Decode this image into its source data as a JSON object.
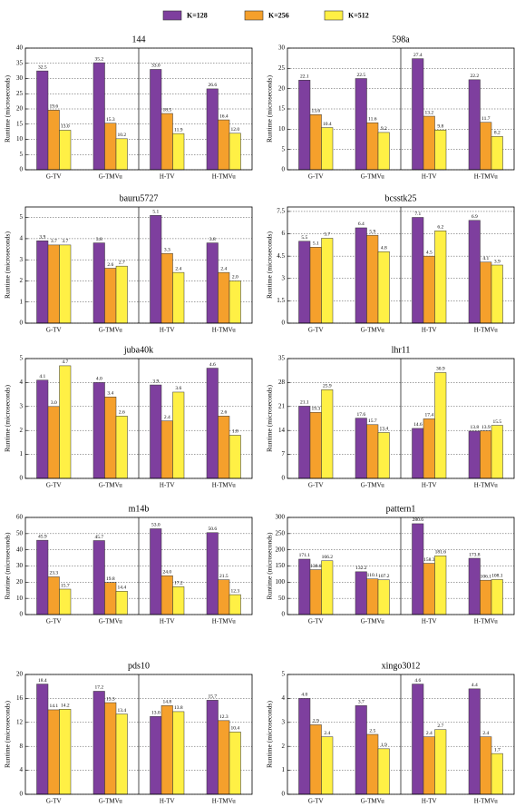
{
  "chart_data": [
    {
      "type": "bar",
      "title": "144",
      "y_label": "Runtime (microseconds)",
      "categories": [
        "G-TV",
        "G-TMVu",
        "H-TV",
        "H-TMVu"
      ],
      "ylim": [
        0,
        40
      ],
      "yticks": [
        0,
        5,
        10,
        15,
        20,
        25,
        30,
        35,
        40
      ],
      "grid": true,
      "series": [
        {
          "name": "K=128",
          "color": "#7e3f9e",
          "values": [
            32.5,
            35.2,
            33.0,
            26.6
          ],
          "value_labels": [
            "32.5",
            "35.2",
            "33.0",
            "26.6"
          ]
        },
        {
          "name": "K=256",
          "color": "#f5a02c",
          "values": [
            19.6,
            15.3,
            18.5,
            16.4
          ],
          "value_labels": [
            "19.6",
            "15.3",
            "18.5",
            "16.4"
          ]
        },
        {
          "name": "K=512",
          "color": "#fff045",
          "values": [
            13.0,
            10.2,
            11.9,
            12.0
          ],
          "value_labels": [
            "13.0",
            "10.2",
            "11.9",
            "12.0"
          ]
        }
      ]
    },
    {
      "type": "bar",
      "title": "598a",
      "y_label": "Runtime (microseconds)",
      "categories": [
        "G-TV",
        "G-TMVu",
        "H-TV",
        "H-TMVu"
      ],
      "ylim": [
        0,
        30
      ],
      "yticks": [
        0,
        5,
        10,
        15,
        20,
        25,
        30
      ],
      "grid": true,
      "series": [
        {
          "name": "K=128",
          "color": "#7e3f9e",
          "values": [
            22.1,
            22.5,
            27.4,
            22.2
          ],
          "value_labels": [
            "22.1",
            "22.5",
            "27.4",
            "22.2"
          ]
        },
        {
          "name": "K=256",
          "color": "#f5a02c",
          "values": [
            13.6,
            11.6,
            13.2,
            11.7
          ],
          "value_labels": [
            "13.6",
            "11.6",
            "13.2",
            "11.7"
          ]
        },
        {
          "name": "K=512",
          "color": "#fff045",
          "values": [
            10.4,
            9.2,
            9.8,
            8.2
          ],
          "value_labels": [
            "10.4",
            "9.2",
            "9.8",
            "8.2"
          ]
        }
      ]
    },
    {
      "type": "bar",
      "title": "bauru5727",
      "y_label": "Runtime (microseconds)",
      "categories": [
        "G-TV",
        "G-TMVu",
        "H-TV",
        "H-TMVu"
      ],
      "ylim": [
        0,
        5.5
      ],
      "yticks": [
        0,
        1,
        2,
        3,
        4,
        5
      ],
      "grid": true,
      "series": [
        {
          "name": "K=128",
          "color": "#7e3f9e",
          "values": [
            3.9,
            3.8,
            5.1,
            3.8
          ],
          "value_labels": [
            "3.9",
            "3.8",
            "5.1",
            "3.8"
          ]
        },
        {
          "name": "K=256",
          "color": "#f5a02c",
          "values": [
            3.7,
            2.6,
            3.3,
            2.4
          ],
          "value_labels": [
            "3.7",
            "2.6",
            "3.3",
            "2.4"
          ]
        },
        {
          "name": "K=512",
          "color": "#fff045",
          "values": [
            3.7,
            2.7,
            2.4,
            2.0
          ],
          "value_labels": [
            "3.7",
            "2.7",
            "2.4",
            "2.0"
          ]
        }
      ]
    },
    {
      "type": "bar",
      "title": "bcsstk25",
      "y_label": "Runtime (microseconds)",
      "categories": [
        "G-TV",
        "G-TMVu",
        "H-TV",
        "H-TMVu"
      ],
      "ylim": [
        0,
        7.8
      ],
      "yticks": [
        0,
        1.5,
        3,
        4.5,
        6,
        7.5
      ],
      "grid": true,
      "series": [
        {
          "name": "K=128",
          "color": "#7e3f9e",
          "values": [
            5.5,
            6.4,
            7.1,
            6.9
          ],
          "value_labels": [
            "5.5",
            "6.4",
            "7.1",
            "6.9"
          ]
        },
        {
          "name": "K=256",
          "color": "#f5a02c",
          "values": [
            5.1,
            5.9,
            4.5,
            4.1
          ],
          "value_labels": [
            "5.1",
            "5.9",
            "4.5",
            "4.1"
          ]
        },
        {
          "name": "K=512",
          "color": "#fff045",
          "values": [
            5.7,
            4.8,
            6.2,
            3.9
          ],
          "value_labels": [
            "5.7",
            "4.8",
            "6.2",
            "3.9"
          ]
        }
      ]
    },
    {
      "type": "bar",
      "title": "juba40k",
      "y_label": "Runtime (microseconds)",
      "categories": [
        "G-TV",
        "G-TMVu",
        "H-TV",
        "H-TMVu"
      ],
      "ylim": [
        0,
        5
      ],
      "yticks": [
        0,
        1,
        2,
        3,
        4,
        5
      ],
      "grid": true,
      "series": [
        {
          "name": "K=128",
          "color": "#7e3f9e",
          "values": [
            4.1,
            4.0,
            3.9,
            4.6
          ],
          "value_labels": [
            "4.1",
            "4.0",
            "3.9",
            "4.6"
          ]
        },
        {
          "name": "K=256",
          "color": "#f5a02c",
          "values": [
            3.0,
            3.4,
            2.4,
            2.6
          ],
          "value_labels": [
            "3.0",
            "3.4",
            "2.4",
            "2.6"
          ]
        },
        {
          "name": "K=512",
          "color": "#fff045",
          "values": [
            4.7,
            2.6,
            3.6,
            1.8
          ],
          "value_labels": [
            "4.7",
            "2.6",
            "3.6",
            "1.8"
          ]
        }
      ]
    },
    {
      "type": "bar",
      "title": "lhr11",
      "y_label": "Runtime (microseconds)",
      "categories": [
        "G-TV",
        "G-TMVu",
        "H-TV",
        "H-TMVu"
      ],
      "ylim": [
        0,
        35
      ],
      "yticks": [
        0,
        7,
        14,
        21,
        28,
        35
      ],
      "grid": true,
      "series": [
        {
          "name": "K=128",
          "color": "#7e3f9e",
          "values": [
            21.1,
            17.6,
            14.6,
            13.8
          ],
          "value_labels": [
            "21.1",
            "17.6",
            "14.6",
            "13.8"
          ]
        },
        {
          "name": "K=256",
          "color": "#f5a02c",
          "values": [
            19.3,
            15.7,
            17.4,
            13.9
          ],
          "value_labels": [
            "19.3",
            "15.7",
            "17.4",
            "13.9"
          ]
        },
        {
          "name": "K=512",
          "color": "#fff045",
          "values": [
            25.9,
            13.4,
            30.9,
            15.5
          ],
          "value_labels": [
            "25.9",
            "13.4",
            "30.9",
            "15.5"
          ]
        }
      ]
    },
    {
      "type": "bar",
      "title": "m14b",
      "y_label": "Runtime (microseconds)",
      "categories": [
        "G-TV",
        "G-TMVu",
        "H-TV",
        "H-TMVu"
      ],
      "ylim": [
        0,
        60
      ],
      "yticks": [
        0,
        10,
        20,
        30,
        40,
        50,
        60
      ],
      "grid": true,
      "series": [
        {
          "name": "K=128",
          "color": "#7e3f9e",
          "values": [
            45.9,
            45.7,
            53.0,
            50.6
          ],
          "value_labels": [
            "45.9",
            "45.7",
            "53.0",
            "50.6"
          ]
        },
        {
          "name": "K=256",
          "color": "#f5a02c",
          "values": [
            23.3,
            19.8,
            24.0,
            21.5
          ],
          "value_labels": [
            "23.3",
            "19.8",
            "24.0",
            "21.5"
          ]
        },
        {
          "name": "K=512",
          "color": "#fff045",
          "values": [
            15.7,
            14.4,
            17.2,
            12.3
          ],
          "value_labels": [
            "15.7",
            "14.4",
            "17.2",
            "12.3"
          ]
        }
      ]
    },
    {
      "type": "bar",
      "title": "pattern1",
      "y_label": "Runtime (microseconds)",
      "categories": [
        "G-TV",
        "G-TMVu",
        "H-TV",
        "H-TMVu"
      ],
      "ylim": [
        0,
        300
      ],
      "yticks": [
        0,
        50,
        100,
        150,
        200,
        250,
        300
      ],
      "grid": true,
      "series": [
        {
          "name": "K=128",
          "color": "#7e3f9e",
          "values": [
            171.1,
            132.2,
            280.6,
            173.8
          ],
          "value_labels": [
            "171.1",
            "132.2",
            "280.6",
            "173.8"
          ]
        },
        {
          "name": "K=256",
          "color": "#f5a02c",
          "values": [
            138.6,
            110.1,
            158.3,
            106.1
          ],
          "value_labels": [
            "138.6",
            "110.1",
            "158.3",
            "106.1"
          ]
        },
        {
          "name": "K=512",
          "color": "#fff045",
          "values": [
            166.2,
            107.2,
            181.6,
            108.1
          ],
          "value_labels": [
            "166.2",
            "107.2",
            "181.6",
            "108.1"
          ]
        }
      ]
    },
    {
      "type": "bar",
      "title": "pds10",
      "y_label": "Runtime (microseconds)",
      "categories": [
        "G-TV",
        "G-TMVu",
        "H-TV",
        "H-TMVu"
      ],
      "ylim": [
        0,
        20
      ],
      "yticks": [
        0,
        4,
        8,
        12,
        16,
        20
      ],
      "grid": true,
      "series": [
        {
          "name": "K=128",
          "color": "#7e3f9e",
          "values": [
            18.4,
            17.2,
            13.0,
            15.7
          ],
          "value_labels": [
            "18.4",
            "17.2",
            "13.0",
            "15.7"
          ]
        },
        {
          "name": "K=256",
          "color": "#f5a02c",
          "values": [
            14.1,
            15.3,
            14.8,
            12.3
          ],
          "value_labels": [
            "14.1",
            "15.3",
            "14.8",
            "12.3"
          ]
        },
        {
          "name": "K=512",
          "color": "#fff045",
          "values": [
            14.2,
            13.4,
            13.8,
            10.4
          ],
          "value_labels": [
            "14.2",
            "13.4",
            "13.8",
            "10.4"
          ]
        }
      ]
    },
    {
      "type": "bar",
      "title": "xingo3012",
      "y_label": "Runtime (microseconds)",
      "categories": [
        "G-TV",
        "G-TMVu",
        "H-TV",
        "H-TMVu"
      ],
      "ylim": [
        0,
        5
      ],
      "yticks": [
        0,
        1,
        2,
        3,
        4,
        5
      ],
      "grid": true,
      "series": [
        {
          "name": "K=128",
          "color": "#7e3f9e",
          "values": [
            4.0,
            3.7,
            4.6,
            4.4
          ],
          "value_labels": [
            "4.0",
            "3.7",
            "4.6",
            "4.4"
          ]
        },
        {
          "name": "K=256",
          "color": "#f5a02c",
          "values": [
            2.9,
            2.5,
            2.4,
            2.4
          ],
          "value_labels": [
            "2.9",
            "2.5",
            "2.4",
            "2.4"
          ]
        },
        {
          "name": "K=512",
          "color": "#fff045",
          "values": [
            2.4,
            1.9,
            2.7,
            1.7
          ],
          "value_labels": [
            "2.4",
            "1.9",
            "2.7",
            "1.7"
          ]
        }
      ]
    }
  ]
}
